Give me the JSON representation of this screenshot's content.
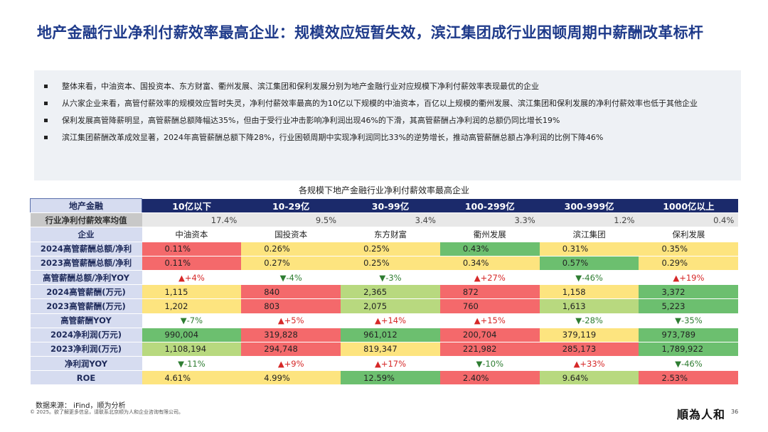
{
  "title": "地产金融行业净利付薪效率最高企业：规模效应短暂失效，滨江集团成行业困顿周期中薪酬改革标杆",
  "summary": [
    "整体来看，中油资本、国投资本、东方财富、衢州发展、滨江集团和保利发展分别为地产金融行业对应规模下净利付薪效率表现最优的企业",
    "从六家企业来看，高管付薪效率的规模效应暂时失灵，净利付薪效率最高的为10亿以下规模的中油资本，百亿以上规模的衢州发展、滨江集团和保利发展的净利付薪效率也低于其他企业",
    "保利发展高管降薪明显，高管薪酬总额降幅达35%，但由于受行业冲击影响净利润出现46%的下滑，其高管薪酬占净利润的总额仍同比增长19%",
    "滨江集团薪酬改革成效显著，2024年高管薪酬总额下降28%，行业困顿周期中实现净利润同比33%的逆势增长，推动高管薪酬总额占净利润的比例下降46%"
  ],
  "table_title": "各规模下地产金融行业净利付薪效率最高企业",
  "corner_label": "地产金融",
  "columns": [
    "10亿以下",
    "10-29亿",
    "30-99亿",
    "100-299亿",
    "300-999亿",
    "1000亿以上"
  ],
  "avg_row": {
    "label": "行业净利付薪效率均值",
    "values": [
      "17.4%",
      "9.5%",
      "3.4%",
      "3.3%",
      "1.2%",
      "0.4%"
    ]
  },
  "firm_row": {
    "label": "企业",
    "values": [
      "中油资本",
      "国投资本",
      "东方财富",
      "衢州发展",
      "滨江集团",
      "保利发展"
    ]
  },
  "rows": [
    {
      "label": "2024高管薪酬总额/净利",
      "values": [
        "0.11%",
        "0.26%",
        "0.25%",
        "0.43%",
        "0.31%",
        "0.35%"
      ]
    },
    {
      "label": "2023高管薪酬总额/净利",
      "values": [
        "0.11%",
        "0.27%",
        "0.25%",
        "0.34%",
        "0.57%",
        "0.29%"
      ]
    },
    {
      "label": "高管薪酬总额/净利YOY",
      "values": [
        "▲+4%",
        "▼-4%",
        "▼-3%",
        "▲+27%",
        "▼-46%",
        "▲+19%"
      ]
    },
    {
      "label": "2024高管薪酬(万元)",
      "values": [
        "1,115",
        "840",
        "2,365",
        "872",
        "1,158",
        "3,372"
      ]
    },
    {
      "label": "2023高管薪酬(万元)",
      "values": [
        "1,202",
        "803",
        "2,075",
        "760",
        "1,613",
        "5,223"
      ]
    },
    {
      "label": "高管薪酬YOY",
      "values": [
        "▼-7%",
        "▲+5%",
        "▲+14%",
        "▲+15%",
        "▼-28%",
        "▼-35%"
      ]
    },
    {
      "label": "2024净利润(万元)",
      "values": [
        "990,004",
        "319,828",
        "961,012",
        "200,704",
        "379,119",
        "973,789"
      ]
    },
    {
      "label": "2023净利润(万元)",
      "values": [
        "1,108,194",
        "294,748",
        "819,347",
        "221,982",
        "285,173",
        "1,789,922"
      ]
    },
    {
      "label": "净利润YOY",
      "values": [
        "▼-11%",
        "▲+9%",
        "▲+17%",
        "▼-10%",
        "▲+33%",
        "▼-46%"
      ]
    },
    {
      "label": "ROE",
      "values": [
        "4.61%",
        "4.99%",
        "12.59%",
        "2.40%",
        "9.64%",
        "2.53%"
      ]
    }
  ],
  "cell_colors": [
    [
      "#f4696b",
      "#fde47f",
      "#fde47f",
      "#6cbf6f",
      "#fde47f",
      "#fde47f"
    ],
    [
      "#f4696b",
      "#fde47f",
      "#fde47f",
      "#fde47f",
      "#6cbf6f",
      "#fde47f"
    ],
    [
      "#ffffff",
      "#ffffff",
      "#ffffff",
      "#ffffff",
      "#ffffff",
      "#ffffff"
    ],
    [
      "#fde47f",
      "#f4696b",
      "#b8d97f",
      "#f4696b",
      "#fde47f",
      "#6cbf6f"
    ],
    [
      "#fde47f",
      "#f4696b",
      "#b8d97f",
      "#f4696b",
      "#b8d97f",
      "#6cbf6f"
    ],
    [
      "#ffffff",
      "#ffffff",
      "#ffffff",
      "#ffffff",
      "#ffffff",
      "#ffffff"
    ],
    [
      "#6cbf6f",
      "#f4696b",
      "#6cbf6f",
      "#f4696b",
      "#fde47f",
      "#6cbf6f"
    ],
    [
      "#b8d97f",
      "#f4696b",
      "#fde47f",
      "#f4696b",
      "#f4696b",
      "#6cbf6f"
    ],
    [
      "#ffffff",
      "#ffffff",
      "#ffffff",
      "#ffffff",
      "#ffffff",
      "#ffffff"
    ],
    [
      "#fde47f",
      "#fde47f",
      "#6cbf6f",
      "#f4696b",
      "#b8d97f",
      "#f4696b"
    ]
  ],
  "source": "数据来源： iFind，顺为分析",
  "copyright": "© 2025。欲了解更多信息，请联系北京顺为人和企业咨询有限公司。",
  "logo_text": "順為人和",
  "page_number": "36"
}
